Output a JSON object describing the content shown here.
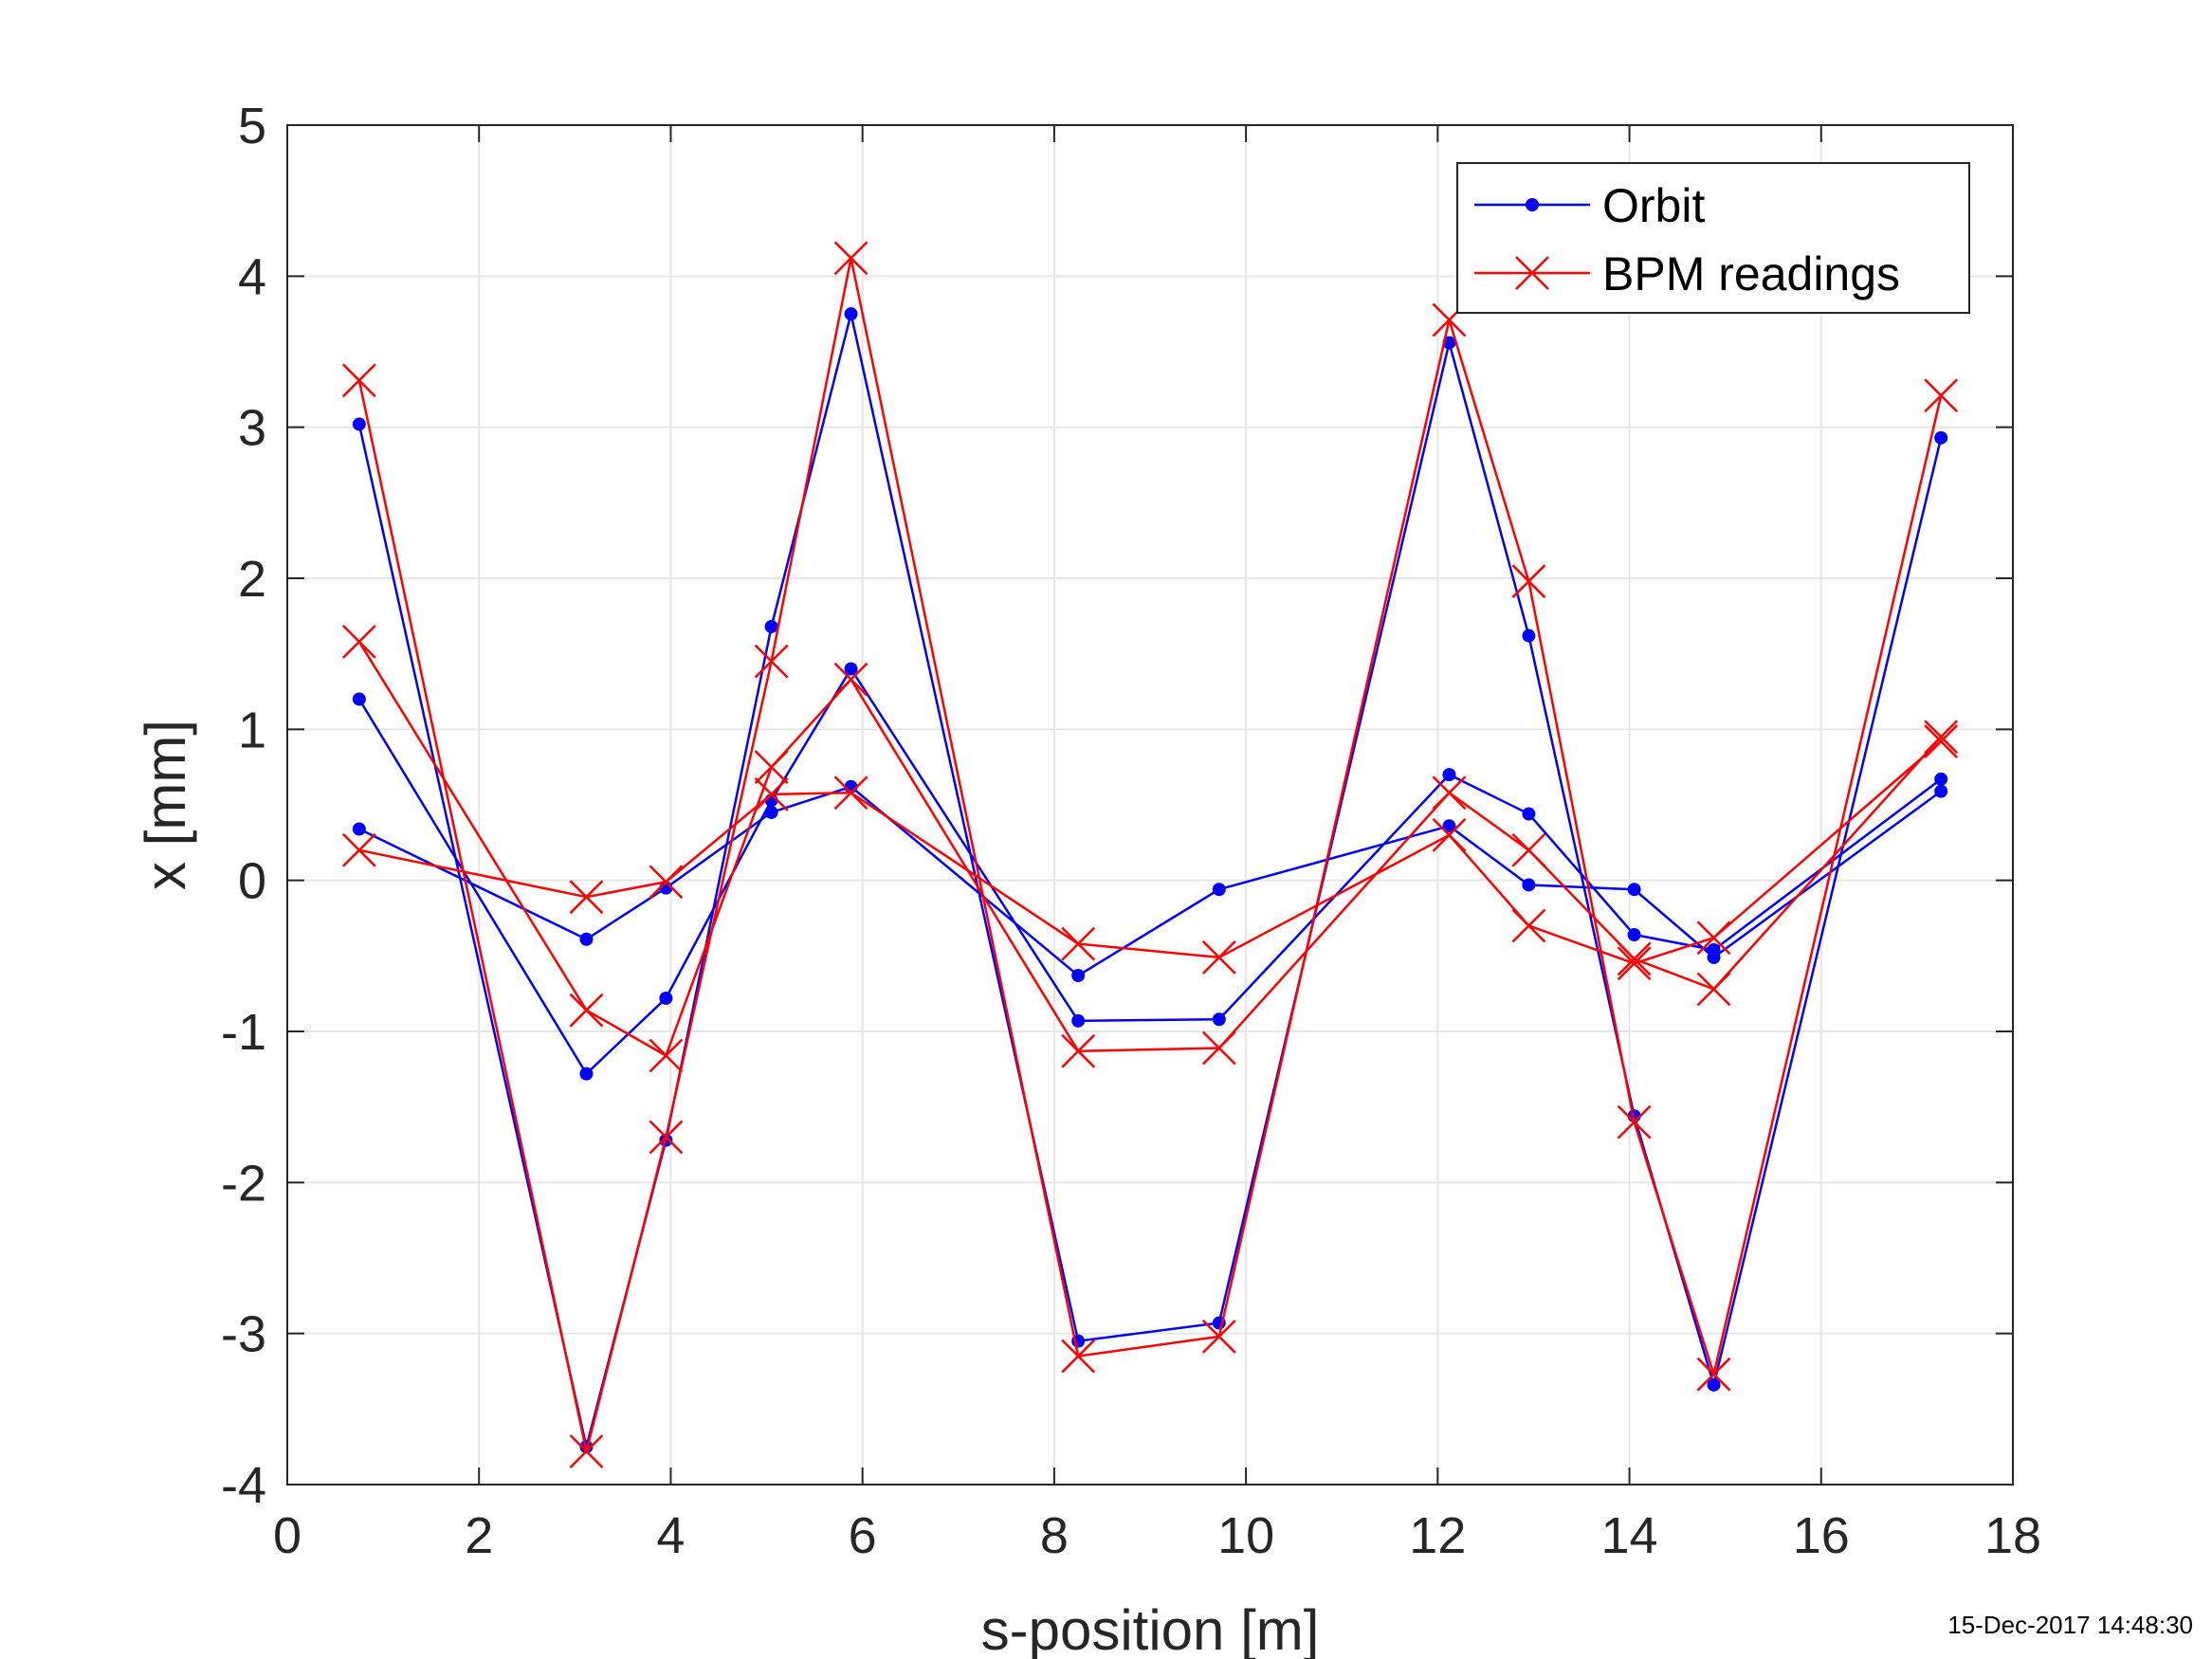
{
  "chart_data": {
    "type": "line",
    "xlabel": "s-position [m]",
    "ylabel": "x [mm]",
    "xlim": [
      0,
      18
    ],
    "ylim": [
      -4,
      5
    ],
    "xticks": [
      0,
      2,
      4,
      6,
      8,
      10,
      12,
      14,
      16,
      18
    ],
    "yticks": [
      -4,
      -3,
      -2,
      -1,
      0,
      1,
      2,
      3,
      4,
      5
    ],
    "grid": true,
    "legend_position": "top-right",
    "legend": [
      "Orbit",
      "BPM readings"
    ],
    "colors": {
      "orbit": "#0000ff",
      "bpm": "#ff0000",
      "grid": "#e6e6e6",
      "axes": "#262626"
    },
    "x": [
      0.75,
      3.12,
      3.95,
      5.05,
      5.88,
      8.25,
      9.72,
      12.12,
      12.95,
      14.05,
      14.88,
      17.25
    ],
    "series": [
      {
        "name": "Orbit",
        "group": "orbit",
        "marker": "dot",
        "values": [
          3.02,
          -3.75,
          -1.72,
          1.68,
          3.75,
          -3.05,
          -2.93,
          3.56,
          1.62,
          -1.56,
          -3.34,
          2.93
        ]
      },
      {
        "name": "Orbit",
        "group": "orbit",
        "marker": "dot",
        "values": [
          1.2,
          -1.28,
          -0.78,
          0.53,
          1.4,
          -0.93,
          -0.92,
          0.7,
          0.44,
          -0.36,
          -0.46,
          0.67
        ]
      },
      {
        "name": "Orbit",
        "group": "orbit",
        "marker": "dot",
        "values": [
          0.34,
          -0.39,
          -0.05,
          0.45,
          0.62,
          -0.63,
          -0.06,
          0.36,
          -0.03,
          -0.06,
          -0.51,
          0.59
        ]
      },
      {
        "name": "BPM readings",
        "group": "bpm",
        "marker": "cross",
        "values": [
          3.31,
          -3.78,
          -1.7,
          1.45,
          4.12,
          -3.15,
          -3.02,
          3.71,
          1.98,
          -1.6,
          -3.27,
          3.21
        ]
      },
      {
        "name": "BPM readings",
        "group": "bpm",
        "marker": "cross",
        "values": [
          1.58,
          -0.86,
          -1.16,
          0.75,
          1.33,
          -1.13,
          -1.11,
          0.58,
          0.2,
          -0.52,
          -0.72,
          0.95
        ]
      },
      {
        "name": "BPM readings",
        "group": "bpm",
        "marker": "cross",
        "values": [
          0.2,
          -0.11,
          -0.01,
          0.57,
          0.58,
          -0.42,
          -0.51,
          0.3,
          -0.3,
          -0.55,
          -0.38,
          0.92
        ]
      }
    ]
  },
  "timestamp": "15-Dec-2017 14:48:30"
}
